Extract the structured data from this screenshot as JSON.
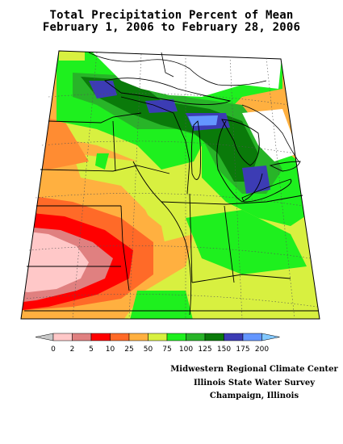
{
  "title": {
    "line1": "Total Precipitation Percent of Mean",
    "line2": "February 1, 2006 to February 28, 2006"
  },
  "legend": {
    "ticks": [
      "0",
      "2",
      "5",
      "10",
      "25",
      "50",
      "75",
      "100",
      "125",
      "150",
      "175",
      "200"
    ],
    "colors": [
      "#c8c8c8",
      "#ffc8c8",
      "#e08080",
      "#ff0000",
      "#ff6a28",
      "#ffb040",
      "#d8f040",
      "#1ef01e",
      "#28b428",
      "#0a7a0a",
      "#3c3cb4",
      "#6496ff",
      "#82c8ff"
    ]
  },
  "credits": {
    "line1": "Midwestern Regional Climate Center",
    "line2": "Illinois State Water Survey",
    "line3": "Champaign, Illinois"
  }
}
